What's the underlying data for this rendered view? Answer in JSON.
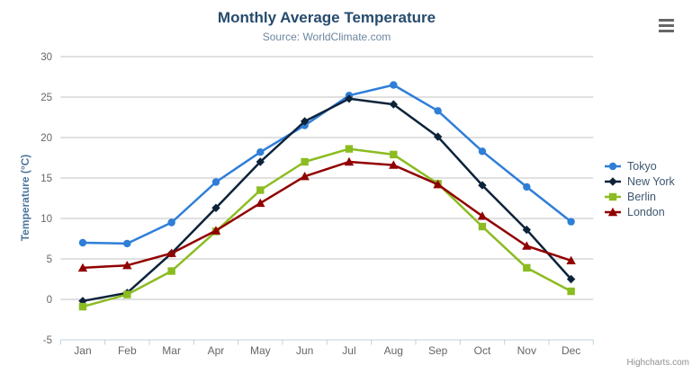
{
  "header": {
    "title": "Monthly Average Temperature",
    "subtitle": "Source: WorldClimate.com"
  },
  "credits": {
    "label": "Highcharts.com"
  },
  "icons": {
    "export_menu": "hamburger-icon"
  },
  "colors": {
    "title": "#274b6d",
    "subtitle": "#6d869f",
    "axis_title": "#4d759e",
    "tick_label": "#666666",
    "gridline": "#c0c0c0",
    "axis_line": "#c0d0e0",
    "legend_text": "#3e576f",
    "credits_text": "#909090",
    "background": "#ffffff"
  },
  "chart_data": {
    "type": "line",
    "title": "Monthly Average Temperature",
    "subtitle": "Source: WorldClimate.com",
    "xlabel": "",
    "ylabel": "Temperature (°C)",
    "categories": [
      "Jan",
      "Feb",
      "Mar",
      "Apr",
      "May",
      "Jun",
      "Jul",
      "Aug",
      "Sep",
      "Oct",
      "Nov",
      "Dec"
    ],
    "ylim": [
      -5,
      30
    ],
    "ytick_step": 5,
    "grid": true,
    "legend_position": "right",
    "series": [
      {
        "name": "Tokyo",
        "color": "#2f7ed8",
        "marker": "circle",
        "values": [
          7.0,
          6.9,
          9.5,
          14.5,
          18.2,
          21.5,
          25.2,
          26.5,
          23.3,
          18.3,
          13.9,
          9.6
        ]
      },
      {
        "name": "New York",
        "color": "#0d233a",
        "marker": "diamond",
        "values": [
          -0.2,
          0.8,
          5.7,
          11.3,
          17.0,
          22.0,
          24.8,
          24.1,
          20.1,
          14.1,
          8.6,
          2.5
        ]
      },
      {
        "name": "Berlin",
        "color": "#8bbc21",
        "marker": "square",
        "values": [
          -0.9,
          0.6,
          3.5,
          8.4,
          13.5,
          17.0,
          18.6,
          17.9,
          14.3,
          9.0,
          3.9,
          1.0
        ]
      },
      {
        "name": "London",
        "color": "#910000",
        "marker": "triangle",
        "values": [
          3.9,
          4.2,
          5.7,
          8.5,
          11.9,
          15.2,
          17.0,
          16.6,
          14.2,
          10.3,
          6.6,
          4.8
        ]
      }
    ]
  }
}
